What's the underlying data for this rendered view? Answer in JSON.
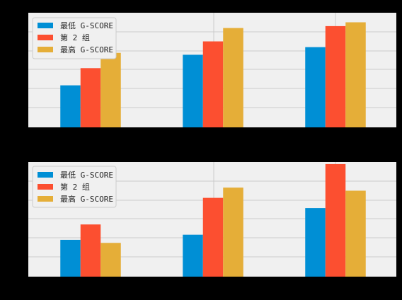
{
  "chart_data": [
    {
      "type": "bar",
      "categories": [
        "",
        "",
        ""
      ],
      "series": [
        {
          "name": "最低 G-SCORE",
          "color": "#008fd5",
          "values": [
            22,
            38,
            42
          ]
        },
        {
          "name": "第 2 组",
          "color": "#fc4f30",
          "values": [
            31,
            45,
            53
          ]
        },
        {
          "name": "最高 G-SCORE",
          "color": "#e5ae38",
          "values": [
            39,
            52,
            55
          ]
        }
      ],
      "ylim": [
        0,
        60
      ],
      "grid": true,
      "legend_position": "top-left",
      "title": "",
      "xlabel": "",
      "ylabel": ""
    },
    {
      "type": "bar",
      "categories": [
        "",
        "",
        ""
      ],
      "series": [
        {
          "name": "最低 G-SCORE",
          "color": "#008fd5",
          "values": [
            18,
            20.5,
            33.5
          ]
        },
        {
          "name": "第 2 组",
          "color": "#fc4f30",
          "values": [
            25.5,
            38.5,
            55
          ]
        },
        {
          "name": "最高 G-SCORE",
          "color": "#e5ae38",
          "values": [
            16.5,
            43.5,
            42
          ]
        }
      ],
      "ylim": [
        0,
        56
      ],
      "grid": true,
      "legend_position": "top-left",
      "title": "",
      "xlabel": "",
      "ylabel": ""
    }
  ]
}
